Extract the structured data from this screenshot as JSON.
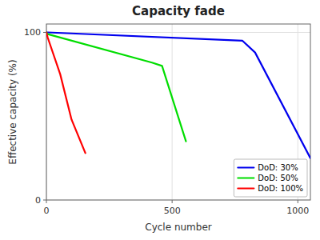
{
  "chart_data": {
    "type": "line",
    "title": "Capacity fade",
    "x_label": "Cycle number",
    "y_label": "Effective capacity (%)",
    "xlim": [
      0,
      1050
    ],
    "ylim": [
      0,
      105
    ],
    "xticks": [
      0,
      500,
      1000
    ],
    "yticks": [
      0,
      100
    ],
    "grid": true,
    "legend": "lower right",
    "series": [
      {
        "name": "DoD: 30%",
        "color": "#0000ee",
        "x": [
          0,
          5,
          780,
          830,
          1050
        ],
        "values": [
          100,
          100,
          95,
          88,
          25
        ]
      },
      {
        "name": "DoD: 50%",
        "color": "#00dd00",
        "x": [
          0,
          5,
          420,
          460,
          555
        ],
        "values": [
          100,
          99,
          82,
          80,
          35
        ]
      },
      {
        "name": "DoD: 100%",
        "color": "#ff0000",
        "x": [
          0,
          5,
          55,
          100,
          155
        ],
        "values": [
          100,
          97,
          75,
          48,
          28
        ]
      }
    ]
  }
}
